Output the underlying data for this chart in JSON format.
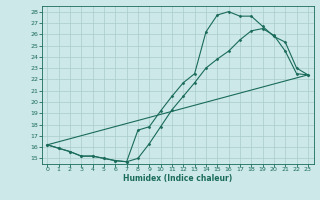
{
  "xlabel": "Humidex (Indice chaleur)",
  "bg_color": "#cce8e8",
  "line_color": "#1a6b5a",
  "grid_color": "#aacccc",
  "xlim": [
    -0.5,
    23.5
  ],
  "ylim": [
    14.5,
    28.5
  ],
  "xticks": [
    0,
    1,
    2,
    3,
    4,
    5,
    6,
    7,
    8,
    9,
    10,
    11,
    12,
    13,
    14,
    15,
    16,
    17,
    18,
    19,
    20,
    21,
    22,
    23
  ],
  "yticks": [
    15,
    16,
    17,
    18,
    19,
    20,
    21,
    22,
    23,
    24,
    25,
    26,
    27,
    28
  ],
  "line1_x": [
    0,
    1,
    2,
    3,
    4,
    5,
    6,
    7,
    8,
    9,
    10,
    11,
    12,
    13,
    14,
    15,
    16,
    17,
    18,
    19,
    20,
    21,
    22,
    23
  ],
  "line1_y": [
    16.2,
    15.9,
    15.6,
    15.2,
    15.2,
    15.0,
    14.8,
    14.7,
    17.5,
    17.8,
    19.2,
    20.5,
    21.7,
    22.5,
    26.2,
    27.7,
    28.0,
    27.6,
    27.6,
    26.7,
    25.8,
    25.3,
    23.0,
    22.4
  ],
  "line2_x": [
    0,
    1,
    2,
    3,
    4,
    5,
    6,
    7,
    8,
    9,
    10,
    11,
    12,
    13,
    14,
    15,
    16,
    17,
    18,
    19,
    20,
    21,
    22,
    23
  ],
  "line2_y": [
    16.2,
    15.9,
    15.6,
    15.2,
    15.2,
    15.0,
    14.8,
    14.7,
    15.0,
    16.3,
    17.8,
    19.3,
    20.5,
    21.7,
    23.0,
    23.8,
    24.5,
    25.5,
    26.3,
    26.5,
    25.9,
    24.5,
    22.5,
    22.4
  ],
  "line3_x": [
    0,
    23
  ],
  "line3_y": [
    16.2,
    22.4
  ]
}
